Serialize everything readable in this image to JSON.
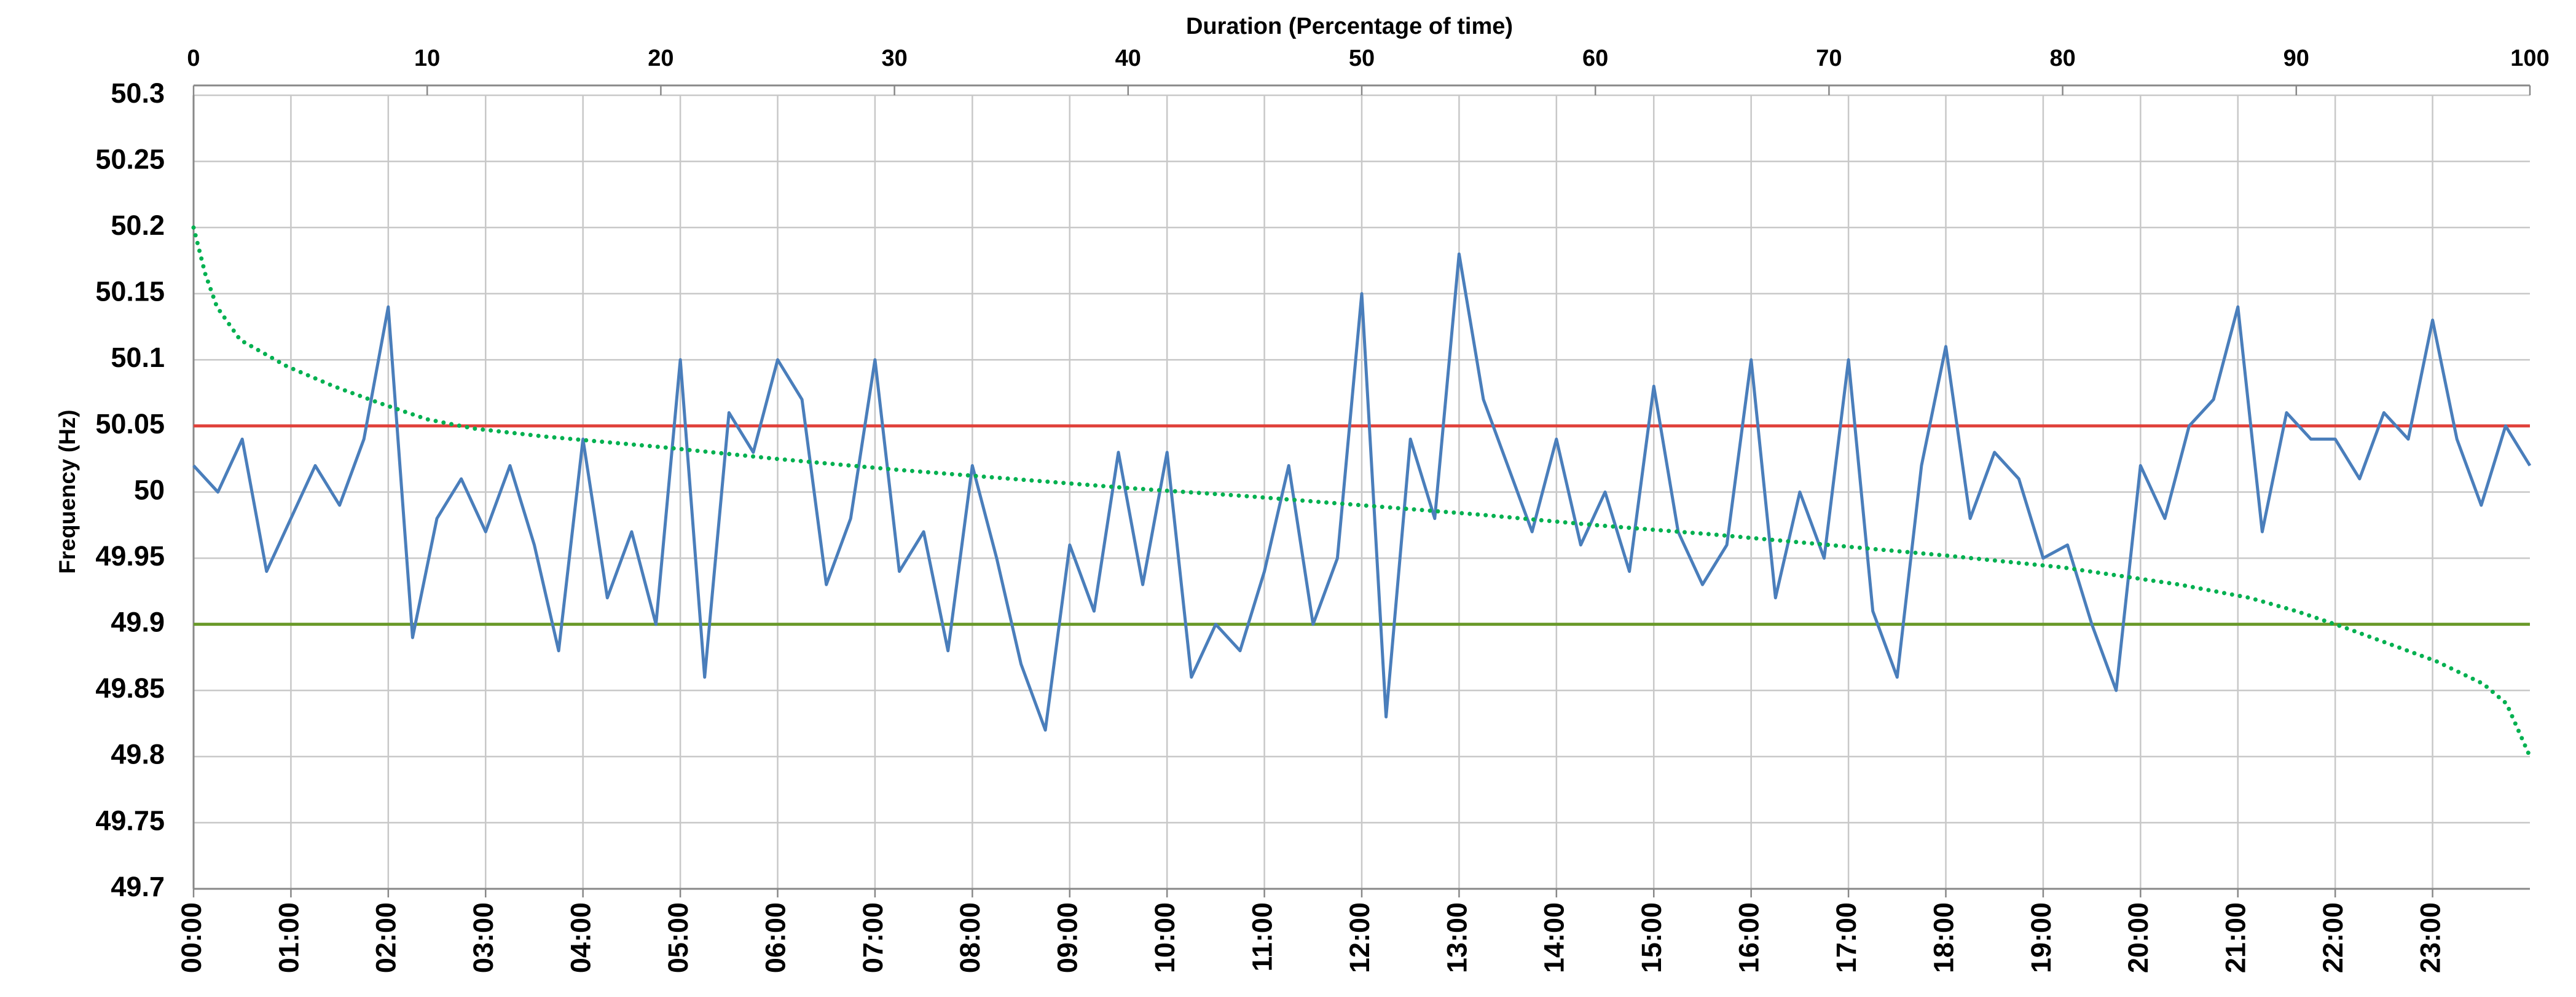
{
  "chart_data": {
    "type": "line",
    "ylabel": "Frequency (Hz)",
    "x2label": "Duration (Percentage of time)",
    "xlim": [
      0,
      24
    ],
    "xticks": [
      {
        "value": 0,
        "label": "00:00"
      },
      {
        "value": 1,
        "label": "01:00"
      },
      {
        "value": 2,
        "label": "02:00"
      },
      {
        "value": 3,
        "label": "03:00"
      },
      {
        "value": 4,
        "label": "04:00"
      },
      {
        "value": 5,
        "label": "05:00"
      },
      {
        "value": 6,
        "label": "06:00"
      },
      {
        "value": 7,
        "label": "07:00"
      },
      {
        "value": 8,
        "label": "08:00"
      },
      {
        "value": 9,
        "label": "09:00"
      },
      {
        "value": 10,
        "label": "10:00"
      },
      {
        "value": 11,
        "label": "11:00"
      },
      {
        "value": 12,
        "label": "12:00"
      },
      {
        "value": 13,
        "label": "13:00"
      },
      {
        "value": 14,
        "label": "14:00"
      },
      {
        "value": 15,
        "label": "15:00"
      },
      {
        "value": 16,
        "label": "16:00"
      },
      {
        "value": 17,
        "label": "17:00"
      },
      {
        "value": 18,
        "label": "18:00"
      },
      {
        "value": 19,
        "label": "19:00"
      },
      {
        "value": 20,
        "label": "20:00"
      },
      {
        "value": 21,
        "label": "21:00"
      },
      {
        "value": 22,
        "label": "22:00"
      },
      {
        "value": 23,
        "label": "23:00"
      }
    ],
    "x2lim": [
      0,
      100
    ],
    "x2ticks": [
      0,
      10,
      20,
      30,
      40,
      50,
      60,
      70,
      80,
      90,
      100
    ],
    "ylim": [
      49.7,
      50.3
    ],
    "yticks": [
      49.7,
      49.75,
      49.8,
      49.85,
      49.9,
      49.95,
      50,
      50.05,
      50.1,
      50.15,
      50.2,
      50.25,
      50.3
    ],
    "grid": true,
    "hlines": [
      {
        "value": 50.05,
        "color": "#e0403a"
      },
      {
        "value": 49.9,
        "color": "#6a9a2a"
      }
    ],
    "series": [
      {
        "color": "#4a7ebb",
        "style": "solid",
        "x": [
          0,
          0.25,
          0.5,
          0.75,
          1,
          1.25,
          1.5,
          1.75,
          2,
          2.25,
          2.5,
          2.75,
          3,
          3.25,
          3.5,
          3.75,
          4,
          4.25,
          4.5,
          4.75,
          5,
          5.25,
          5.5,
          5.75,
          6,
          6.25,
          6.5,
          6.75,
          7,
          7.25,
          7.5,
          7.75,
          8,
          8.25,
          8.5,
          8.75,
          9,
          9.25,
          9.5,
          9.75,
          10,
          10.25,
          10.5,
          10.75,
          11,
          11.25,
          11.5,
          11.75,
          12,
          12.25,
          12.5,
          12.75,
          13,
          13.25,
          13.5,
          13.75,
          14,
          14.25,
          14.5,
          14.75,
          15,
          15.25,
          15.5,
          15.75,
          16,
          16.25,
          16.5,
          16.75,
          17,
          17.25,
          17.5,
          17.75,
          18,
          18.25,
          18.5,
          18.75,
          19,
          19.25,
          19.5,
          19.75,
          20,
          20.25,
          20.5,
          20.75,
          21,
          21.25,
          21.5,
          21.75,
          22,
          22.25,
          22.5,
          22.75,
          23,
          23.25,
          23.5,
          23.75,
          24
        ],
        "values": [
          50.02,
          50.0,
          50.04,
          49.94,
          49.98,
          50.02,
          49.99,
          50.04,
          50.14,
          49.89,
          49.98,
          50.01,
          49.97,
          50.02,
          49.96,
          49.88,
          50.04,
          49.92,
          49.97,
          49.9,
          50.1,
          49.86,
          50.06,
          50.03,
          50.1,
          50.07,
          49.93,
          49.98,
          50.1,
          49.94,
          49.97,
          49.88,
          50.02,
          49.95,
          49.87,
          49.82,
          49.96,
          49.91,
          50.03,
          49.93,
          50.03,
          49.86,
          49.9,
          49.88,
          49.94,
          50.02,
          49.9,
          49.95,
          50.15,
          49.83,
          50.04,
          49.98,
          50.18,
          50.07,
          50.02,
          49.97,
          50.04,
          49.96,
          50.0,
          49.94,
          50.08,
          49.97,
          49.93,
          49.96,
          50.1,
          49.92,
          50.0,
          49.95,
          50.1,
          49.91,
          49.86,
          50.02,
          50.11,
          49.98,
          50.03,
          50.01,
          49.95,
          49.96,
          49.9,
          49.85,
          50.02,
          49.98,
          50.05,
          50.07,
          50.14,
          49.97,
          50.06,
          50.04,
          50.04,
          50.01,
          50.06,
          50.04,
          50.13,
          50.04,
          49.99,
          50.05,
          50.02
        ]
      },
      {
        "color": "#00b050",
        "style": "dotted",
        "axis": "x2",
        "x": [
          0,
          0.5,
          1,
          2,
          4,
          6,
          8,
          10,
          12,
          15,
          20,
          25,
          30,
          35,
          40,
          45,
          50,
          55,
          60,
          65,
          70,
          75,
          80,
          85,
          88,
          90,
          92,
          94,
          96,
          98,
          99,
          99.5,
          100
        ],
        "values": [
          50.2,
          50.165,
          50.14,
          50.115,
          50.095,
          50.08,
          50.067,
          50.055,
          50.048,
          50.042,
          50.034,
          50.025,
          50.017,
          50.01,
          50.003,
          49.997,
          49.99,
          49.983,
          49.975,
          49.968,
          49.96,
          49.952,
          49.943,
          49.93,
          49.92,
          49.91,
          49.898,
          49.885,
          49.872,
          49.855,
          49.84,
          49.82,
          49.8
        ]
      }
    ]
  }
}
